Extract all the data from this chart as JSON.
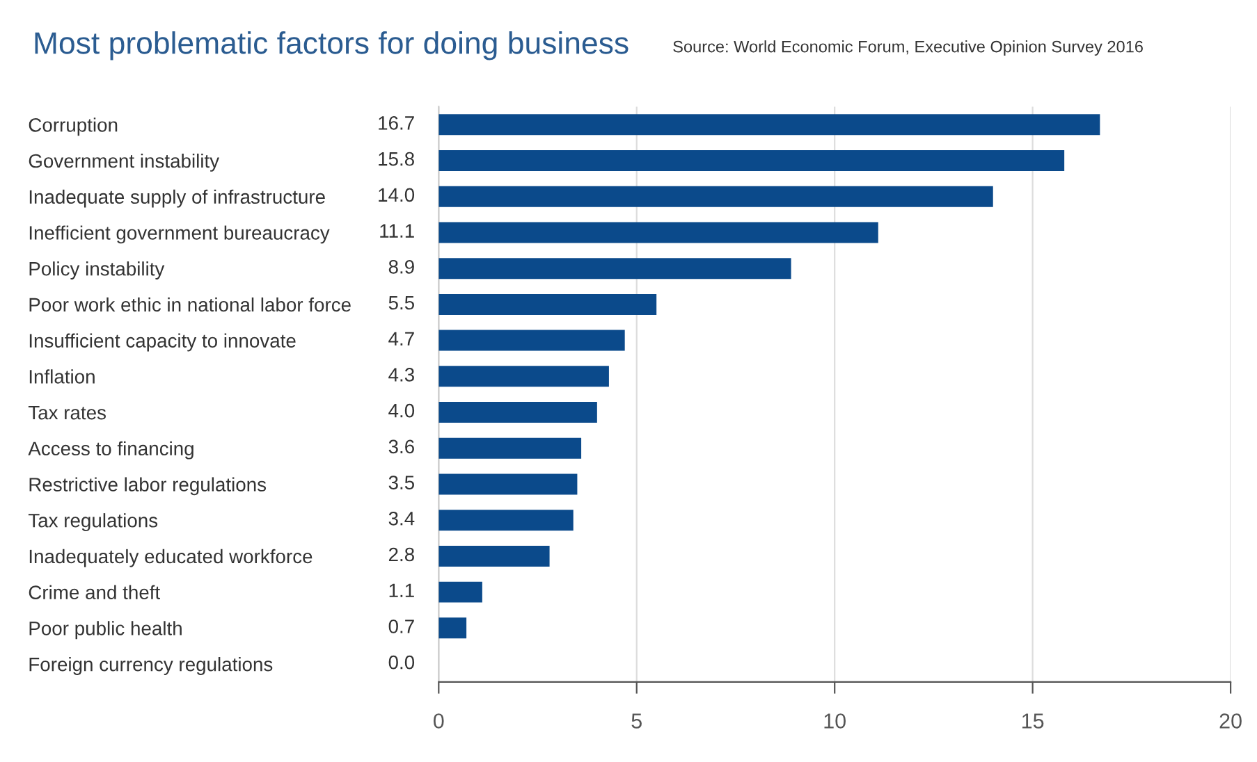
{
  "chart_data": {
    "type": "bar",
    "orientation": "horizontal",
    "title": "Most problematic factors for doing business",
    "annotations": [
      "Source: World Economic Forum, Executive Opinion Survey 2016"
    ],
    "categories": [
      "Corruption",
      "Government instability",
      "Inadequate supply of infrastructure",
      "Inefficient government bureaucracy",
      "Policy instability",
      "Poor work ethic in national labor force",
      "Insufficient capacity to innovate",
      "Inflation",
      "Tax rates",
      "Access to financing",
      "Restrictive labor regulations",
      "Tax regulations",
      "Inadequately educated workforce",
      "Crime and theft",
      "Poor public health",
      "Foreign currency regulations"
    ],
    "values": [
      16.7,
      15.8,
      14.0,
      11.1,
      8.9,
      5.5,
      4.7,
      4.3,
      4.0,
      3.6,
      3.5,
      3.4,
      2.8,
      1.1,
      0.7,
      0.0
    ],
    "color": "#0b4a8b",
    "xlim": [
      0,
      20
    ],
    "xticks": [
      0,
      5,
      10,
      15,
      20
    ],
    "grid": "x",
    "value_labels": [
      "16.7",
      "15.8",
      "14.0",
      "11.1",
      "8.9",
      "5.5",
      "4.7",
      "4.3",
      "4.0",
      "3.6",
      "3.5",
      "3.4",
      "2.8",
      "1.1",
      "0.7",
      "0.0"
    ],
    "legend": false
  }
}
